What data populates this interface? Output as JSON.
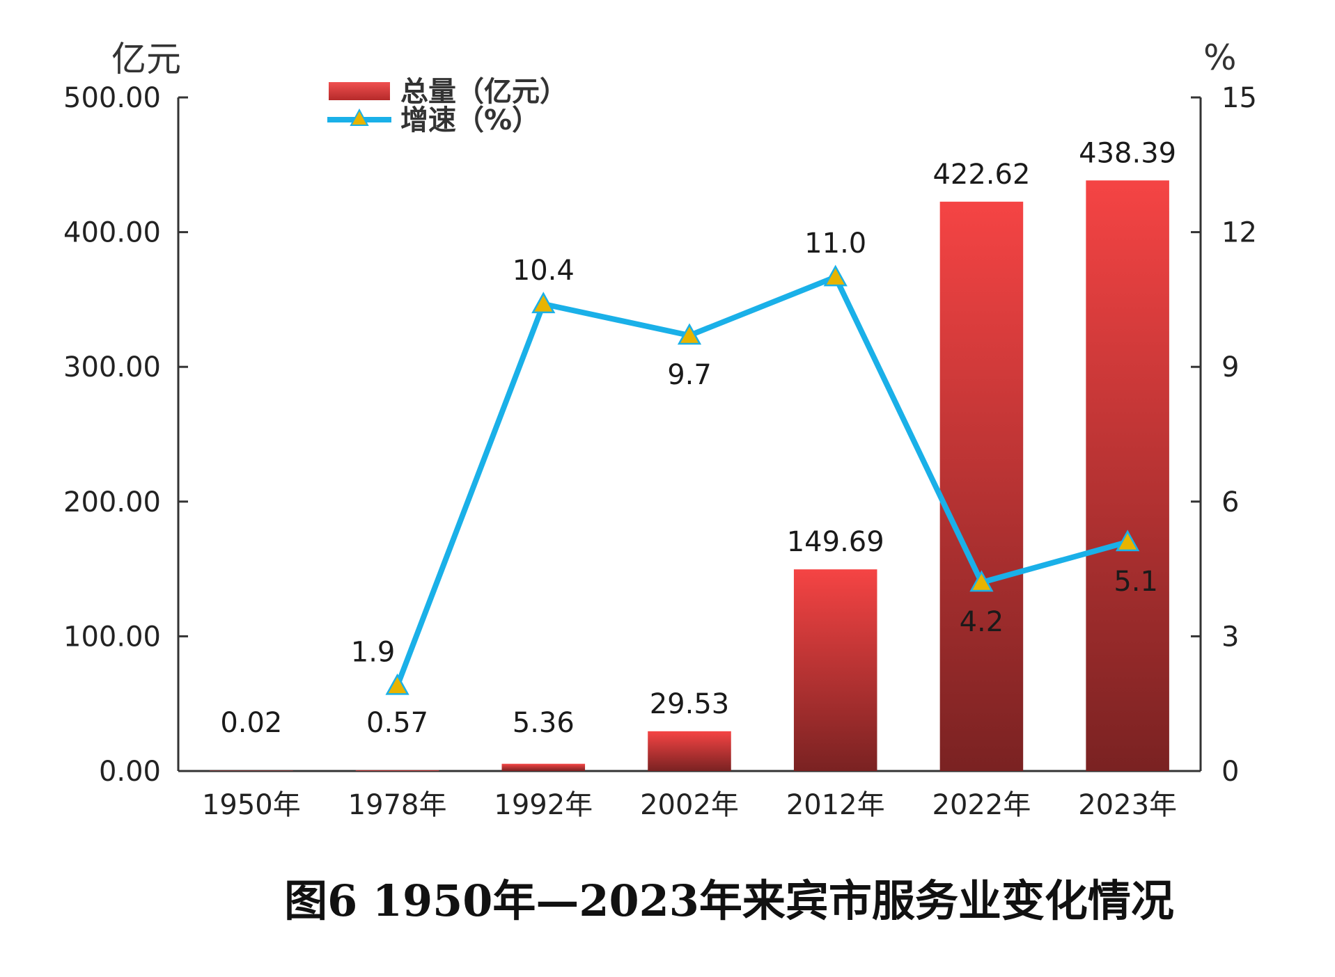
{
  "chart_data": {
    "type": "bar",
    "title": "图6 1950年—2023年来宾市服务业变化情况",
    "categories": [
      "1950年",
      "1978年",
      "1992年",
      "2002年",
      "2012年",
      "2022年",
      "2023年"
    ],
    "series": [
      {
        "name": "总量（亿元）",
        "type": "bar",
        "axis": "left",
        "values": [
          0.02,
          0.57,
          5.36,
          29.53,
          149.69,
          422.62,
          438.39
        ],
        "labels": [
          "0.02",
          "0.57",
          "5.36",
          "29.53",
          "149.69",
          "422.62",
          "438.39"
        ],
        "color": "#e63c3c"
      },
      {
        "name": "增速（%）",
        "type": "line",
        "axis": "right",
        "values": [
          null,
          1.9,
          10.4,
          9.7,
          11.0,
          4.2,
          5.1
        ],
        "labels": [
          "",
          "1.9",
          "10.4",
          "9.7",
          "11.0",
          "4.2",
          "5.1"
        ],
        "color": "#1ab0e8",
        "marker": "triangle",
        "marker_color": "#e8b400"
      }
    ],
    "y_left": {
      "unit": "亿元",
      "ylim": [
        0,
        500
      ],
      "ticks": [
        0,
        100,
        200,
        300,
        400,
        500
      ],
      "tick_labels": [
        "0.00",
        "100.00",
        "200.00",
        "300.00",
        "400.00",
        "500.00"
      ]
    },
    "y_right": {
      "unit": "%",
      "ylim": [
        0,
        15
      ],
      "ticks": [
        0,
        3,
        6,
        9,
        12,
        15
      ],
      "tick_labels": [
        "0",
        "3",
        "6",
        "9",
        "12",
        "15"
      ]
    },
    "grid": false,
    "legend": "top-left"
  }
}
